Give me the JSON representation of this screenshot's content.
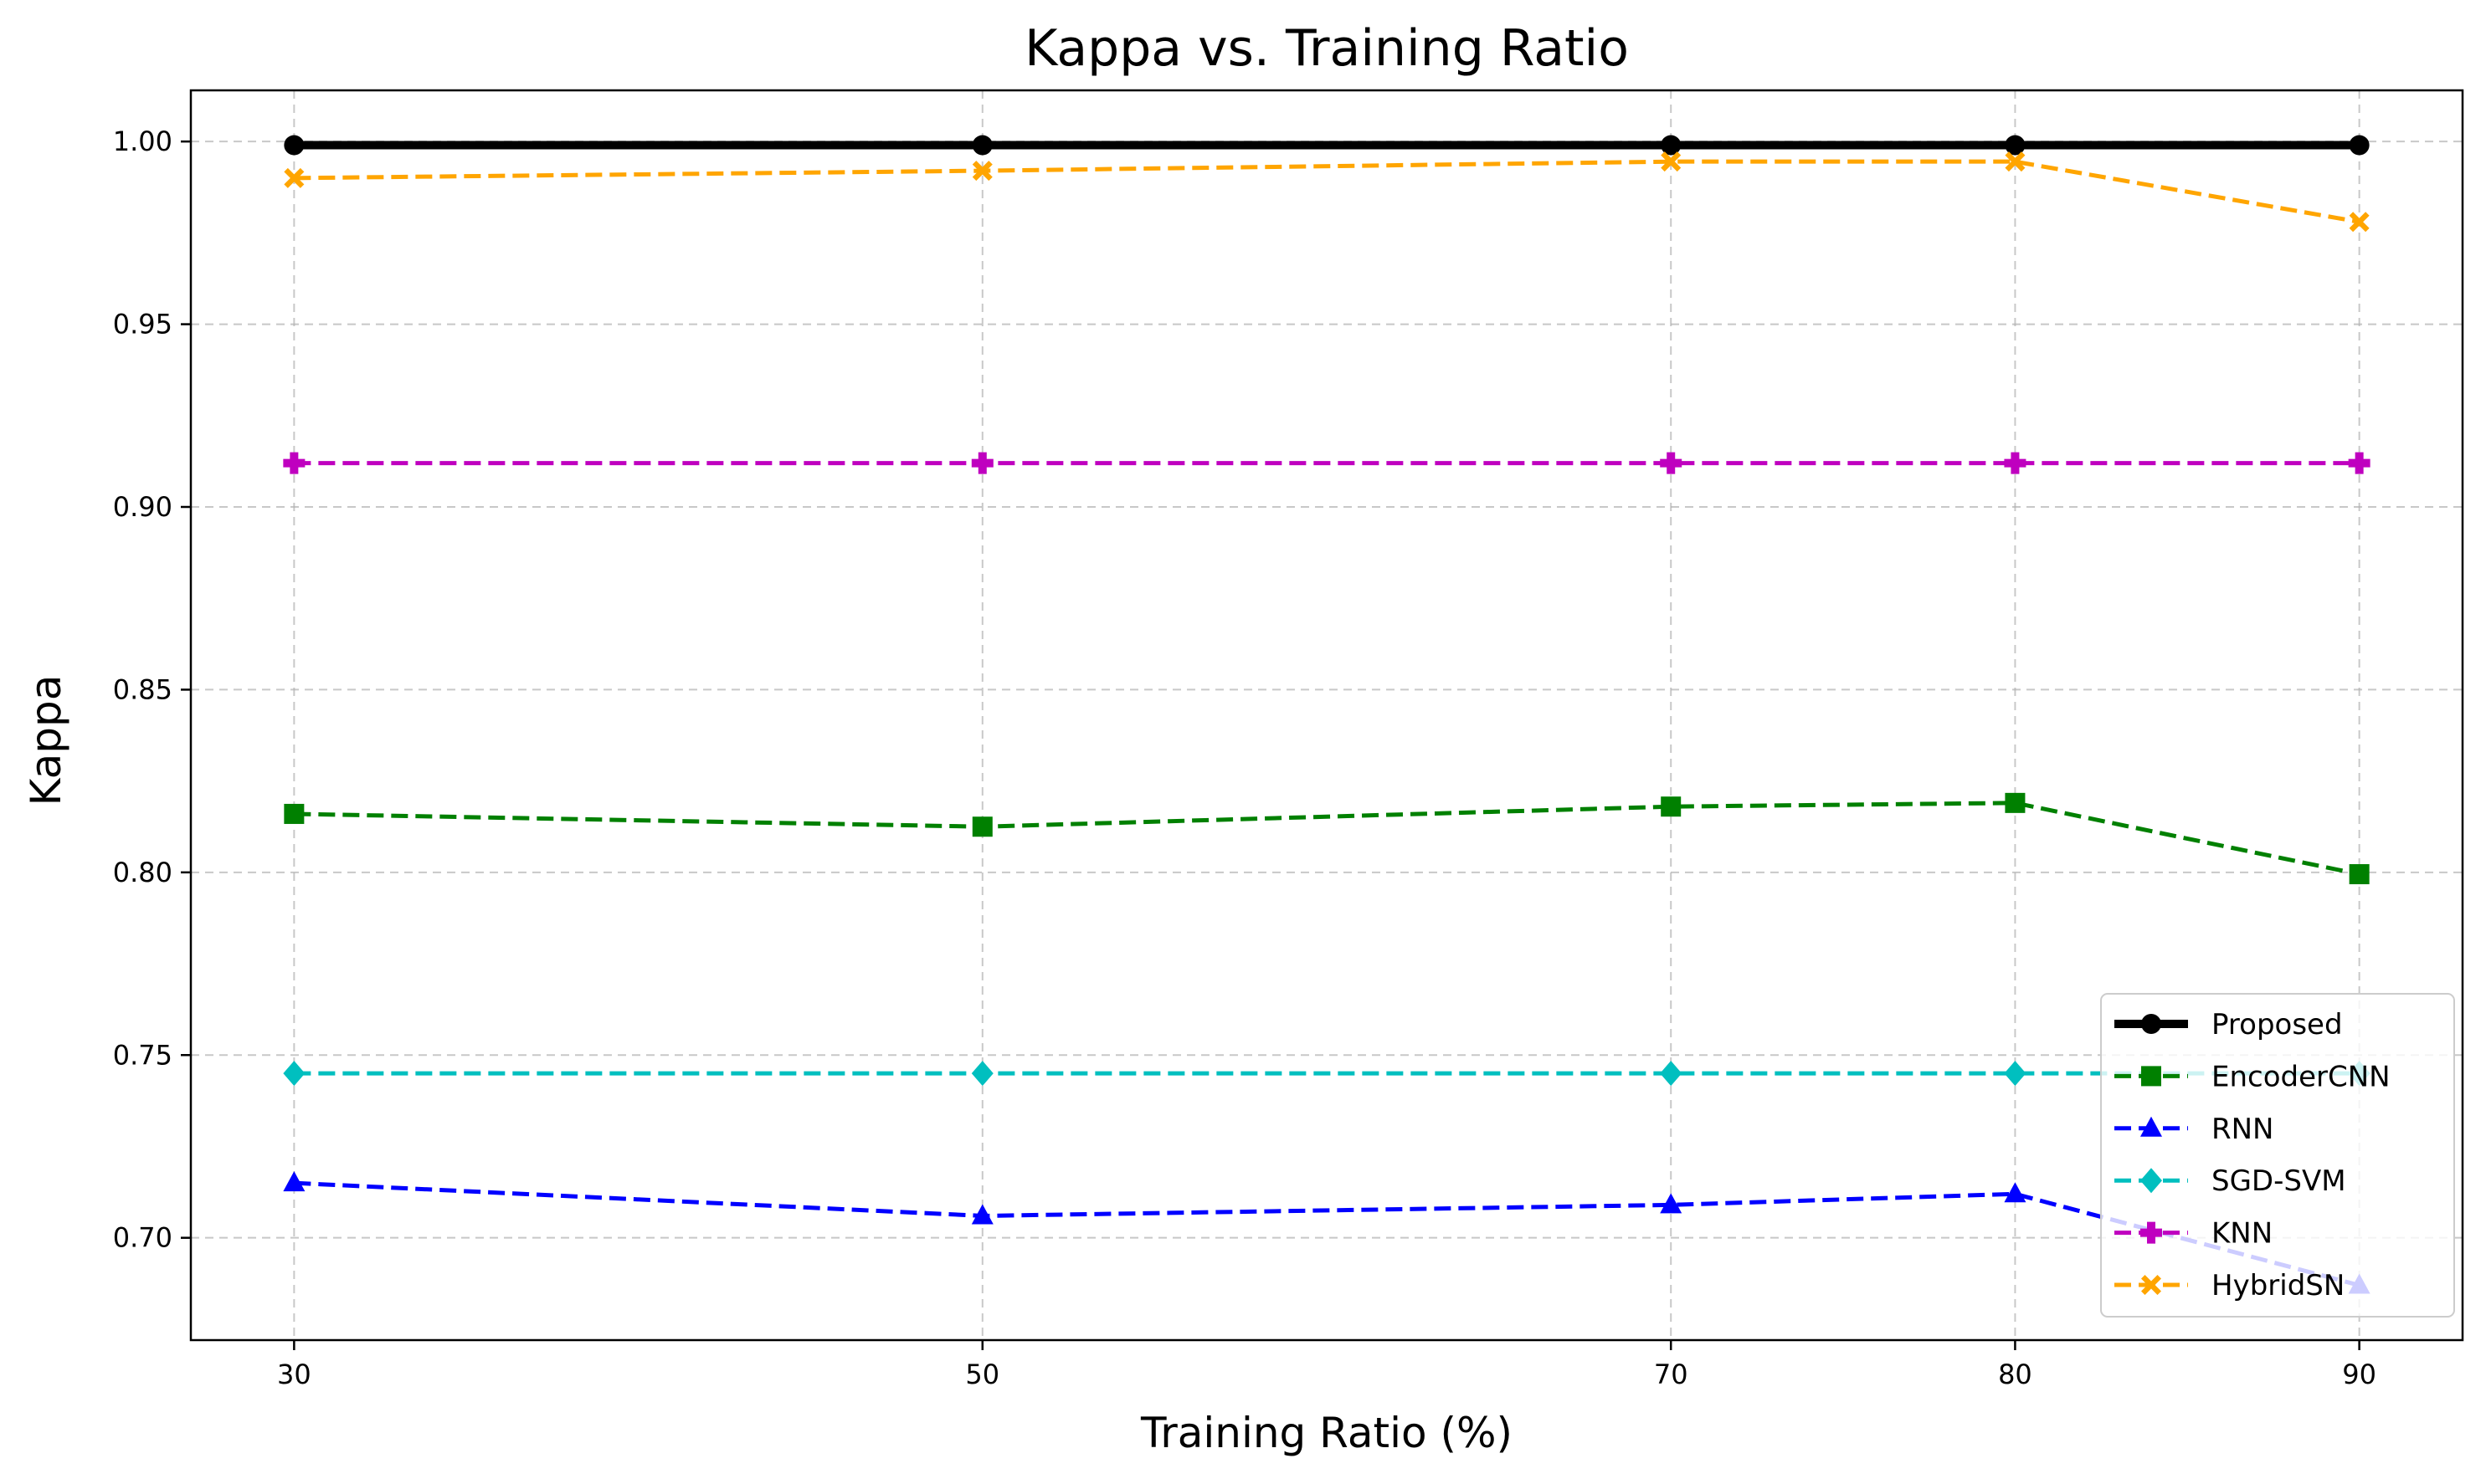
{
  "chart_data": {
    "type": "line",
    "title": "Kappa vs. Training Ratio",
    "xlabel": "Training Ratio (%)",
    "ylabel": "Kappa",
    "x": [
      30,
      50,
      70,
      80,
      90
    ],
    "x_tick_labels": [
      "30",
      "50",
      "70",
      "80",
      "90"
    ],
    "xlim": [
      27,
      93
    ],
    "ylim": [
      0.672,
      1.014
    ],
    "y_ticks": [
      0.7,
      0.75,
      0.8,
      0.85,
      0.9,
      0.95,
      1.0
    ],
    "y_tick_labels": [
      "0.70",
      "0.75",
      "0.80",
      "0.85",
      "0.90",
      "0.95",
      "1.00"
    ],
    "grid": true,
    "legend_position": "lower-right",
    "series": [
      {
        "name": "Proposed",
        "values": [
          0.999,
          0.999,
          0.999,
          0.999,
          0.999
        ],
        "color": "#000000",
        "marker": "circle",
        "dash": "solid",
        "width": "thick"
      },
      {
        "name": "EncoderCNN",
        "values": [
          0.816,
          0.8125,
          0.818,
          0.819,
          0.7995
        ],
        "color": "#008000",
        "marker": "square",
        "dash": "dashed",
        "width": "normal"
      },
      {
        "name": "RNN",
        "values": [
          0.715,
          0.706,
          0.709,
          0.712,
          0.687
        ],
        "color": "#0000ff",
        "marker": "triangle",
        "dash": "dashed",
        "width": "normal"
      },
      {
        "name": "SGD-SVM",
        "values": [
          0.745,
          0.745,
          0.745,
          0.745,
          0.745
        ],
        "color": "#00bfbf",
        "marker": "diamond",
        "dash": "dashed",
        "width": "normal"
      },
      {
        "name": "KNN",
        "values": [
          0.912,
          0.912,
          0.912,
          0.912,
          0.912
        ],
        "color": "#bf00bf",
        "marker": "plus",
        "dash": "dashed",
        "width": "normal"
      },
      {
        "name": "HybridSN",
        "values": [
          0.99,
          0.992,
          0.9945,
          0.9945,
          0.978
        ],
        "color": "#ffa500",
        "marker": "x",
        "dash": "dashed",
        "width": "normal"
      }
    ]
  }
}
